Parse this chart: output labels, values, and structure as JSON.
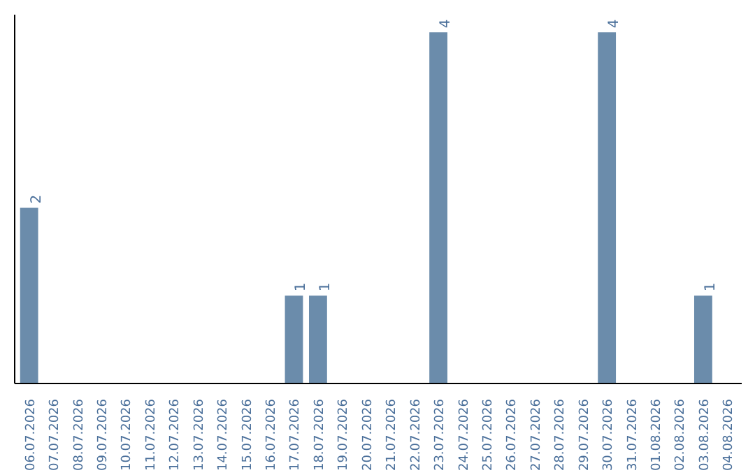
{
  "chart_data": {
    "type": "bar",
    "categories": [
      "06.07.2026",
      "07.07.2026",
      "08.07.2026",
      "09.07.2026",
      "10.07.2026",
      "11.07.2026",
      "12.07.2026",
      "13.07.2026",
      "14.07.2026",
      "15.07.2026",
      "16.07.2026",
      "17.07.2026",
      "18.07.2026",
      "19.07.2026",
      "20.07.2026",
      "21.07.2026",
      "22.07.2026",
      "23.07.2026",
      "24.07.2026",
      "25.07.2026",
      "26.07.2026",
      "27.07.2026",
      "28.07.2026",
      "29.07.2026",
      "30.07.2026",
      "31.07.2026",
      "01.08.2026",
      "02.08.2026",
      "03.08.2026",
      "04.08.2026"
    ],
    "values": [
      2,
      null,
      null,
      null,
      null,
      null,
      null,
      null,
      null,
      null,
      null,
      1,
      1,
      null,
      null,
      null,
      null,
      4,
      null,
      null,
      null,
      null,
      null,
      null,
      4,
      null,
      null,
      null,
      1,
      null
    ],
    "color": "#6b8cab",
    "data_labels": true,
    "ylim": [
      0,
      4.2
    ],
    "grid": false
  }
}
